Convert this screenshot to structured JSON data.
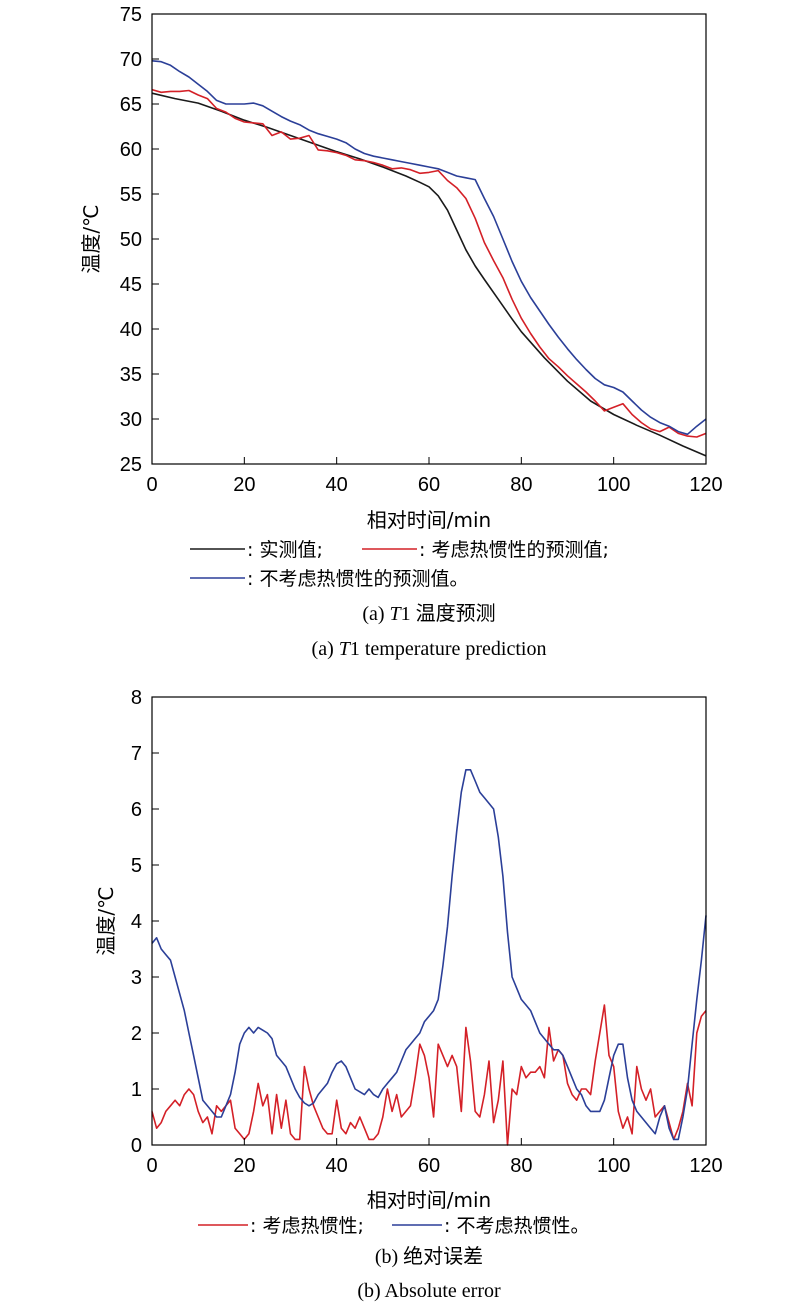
{
  "chart_data": [
    {
      "type": "line",
      "xlabel": "相对时间/min",
      "ylabel": "温度/℃",
      "xlim": [
        0,
        120
      ],
      "ylim": [
        25,
        75
      ],
      "x_ticks": [
        0,
        20,
        40,
        60,
        80,
        100,
        120
      ],
      "y_ticks": [
        25,
        30,
        35,
        40,
        45,
        50,
        55,
        60,
        65,
        70,
        75
      ],
      "grid": false,
      "legend_position": "below",
      "caption_cn_prefix": "(a) ",
      "caption_cn_italic": "T",
      "caption_cn_rest": "1 温度预测",
      "caption_en_prefix": "(a) ",
      "caption_en_italic": "T",
      "caption_en_rest": "1 temperature prediction",
      "legend": [
        {
          "label": ": 实测值;",
          "color": "#1a1a1a"
        },
        {
          "label": ": 考虑热惯性的预测值;",
          "color": "#d42027"
        },
        {
          "label": ": 不考虑热惯性的预测值。",
          "color": "#2b3f98"
        }
      ],
      "series": [
        {
          "color": "#1a1a1a",
          "x": [
            0,
            5,
            10,
            15,
            20,
            25,
            30,
            35,
            40,
            45,
            50,
            55,
            58,
            60,
            62,
            64,
            66,
            68,
            70,
            72,
            75,
            78,
            80,
            85,
            90,
            95,
            100,
            105,
            110,
            115,
            120
          ],
          "y": [
            66.2,
            65.6,
            65.1,
            64.2,
            63.2,
            62.4,
            61.5,
            60.6,
            59.7,
            58.9,
            58.0,
            57.0,
            56.3,
            55.8,
            54.8,
            53.2,
            51.0,
            48.8,
            47.0,
            45.5,
            43.3,
            41.1,
            39.7,
            36.8,
            34.2,
            32.0,
            30.5,
            29.3,
            28.2,
            27.0,
            25.9
          ]
        },
        {
          "color": "#d42027",
          "x": [
            0,
            2,
            4,
            6,
            8,
            10,
            12,
            14,
            16,
            18,
            20,
            22,
            24,
            26,
            28,
            30,
            32,
            34,
            36,
            38,
            40,
            42,
            44,
            46,
            48,
            50,
            52,
            54,
            56,
            58,
            60,
            62,
            64,
            66,
            68,
            70,
            72,
            74,
            76,
            78,
            80,
            82,
            84,
            86,
            88,
            90,
            92,
            94,
            96,
            98,
            100,
            102,
            104,
            106,
            108,
            110,
            112,
            114,
            116,
            118,
            120
          ],
          "y": [
            66.6,
            66.3,
            66.4,
            66.4,
            66.5,
            66.0,
            65.6,
            64.5,
            64.1,
            63.4,
            63.0,
            62.9,
            62.8,
            61.5,
            61.9,
            61.1,
            61.2,
            61.5,
            59.9,
            59.8,
            59.6,
            59.3,
            58.8,
            58.7,
            58.5,
            58.2,
            57.8,
            57.9,
            57.7,
            57.3,
            57.4,
            57.6,
            56.5,
            55.7,
            54.5,
            52.3,
            49.6,
            47.6,
            45.7,
            43.3,
            41.2,
            39.5,
            38.0,
            36.7,
            35.8,
            34.8,
            33.9,
            33.0,
            32.0,
            30.9,
            31.3,
            31.7,
            30.5,
            29.6,
            28.9,
            28.6,
            29.1,
            28.4,
            28.1,
            28.0,
            28.4
          ]
        },
        {
          "color": "#2b3f98",
          "x": [
            0,
            2,
            4,
            6,
            8,
            10,
            12,
            14,
            16,
            18,
            20,
            22,
            24,
            26,
            28,
            30,
            32,
            34,
            36,
            38,
            40,
            42,
            44,
            46,
            48,
            50,
            52,
            54,
            56,
            58,
            60,
            62,
            64,
            66,
            68,
            70,
            72,
            74,
            76,
            78,
            80,
            82,
            84,
            86,
            88,
            90,
            92,
            94,
            96,
            98,
            100,
            102,
            104,
            106,
            108,
            110,
            112,
            114,
            116,
            118,
            120
          ],
          "y": [
            69.8,
            69.7,
            69.3,
            68.6,
            68.0,
            67.2,
            66.4,
            65.4,
            65.0,
            65.0,
            65.0,
            65.1,
            64.8,
            64.2,
            63.6,
            63.1,
            62.7,
            62.1,
            61.7,
            61.4,
            61.1,
            60.7,
            60.0,
            59.5,
            59.2,
            59.0,
            58.8,
            58.6,
            58.4,
            58.2,
            58.0,
            57.8,
            57.4,
            57.0,
            56.8,
            56.6,
            54.5,
            52.5,
            50.0,
            47.5,
            45.3,
            43.5,
            42.0,
            40.5,
            39.1,
            37.8,
            36.6,
            35.5,
            34.5,
            33.8,
            33.5,
            33.0,
            32.0,
            31.0,
            30.2,
            29.6,
            29.2,
            28.6,
            28.3,
            29.2,
            30.0
          ]
        }
      ]
    },
    {
      "type": "line",
      "xlabel": "相对时间/min",
      "ylabel": "温度/℃",
      "xlim": [
        0,
        120
      ],
      "ylim": [
        0,
        8
      ],
      "x_ticks": [
        0,
        20,
        40,
        60,
        80,
        100,
        120
      ],
      "y_ticks": [
        0,
        1,
        2,
        3,
        4,
        5,
        6,
        7,
        8
      ],
      "grid": false,
      "legend_position": "below",
      "caption_cn": "(b) 绝对误差",
      "caption_en": "(b) Absolute error",
      "legend": [
        {
          "label": ": 考虑热惯性;",
          "color": "#d42027"
        },
        {
          "label": ": 不考虑热惯性。",
          "color": "#2b3f98"
        }
      ],
      "series": [
        {
          "color": "#d42027",
          "x": [
            0,
            1,
            2,
            3,
            4,
            5,
            6,
            7,
            8,
            9,
            10,
            11,
            12,
            13,
            14,
            15,
            16,
            17,
            18,
            19,
            20,
            21,
            22,
            23,
            24,
            25,
            26,
            27,
            28,
            29,
            30,
            31,
            32,
            33,
            34,
            35,
            36,
            37,
            38,
            39,
            40,
            41,
            42,
            43,
            44,
            45,
            46,
            47,
            48,
            49,
            50,
            51,
            52,
            53,
            54,
            55,
            56,
            57,
            58,
            59,
            60,
            61,
            62,
            63,
            64,
            65,
            66,
            67,
            68,
            69,
            70,
            71,
            72,
            73,
            74,
            75,
            76,
            77,
            78,
            79,
            80,
            81,
            82,
            83,
            84,
            85,
            86,
            87,
            88,
            89,
            90,
            91,
            92,
            93,
            94,
            95,
            96,
            97,
            98,
            99,
            100,
            101,
            102,
            103,
            104,
            105,
            106,
            107,
            108,
            109,
            110,
            111,
            112,
            113,
            114,
            115,
            116,
            117,
            118,
            119,
            120
          ],
          "y": [
            0.6,
            0.3,
            0.4,
            0.6,
            0.7,
            0.8,
            0.7,
            0.9,
            1.0,
            0.9,
            0.6,
            0.4,
            0.5,
            0.2,
            0.7,
            0.6,
            0.7,
            0.8,
            0.3,
            0.2,
            0.1,
            0.2,
            0.6,
            1.1,
            0.7,
            0.9,
            0.2,
            0.9,
            0.3,
            0.8,
            0.2,
            0.1,
            0.1,
            1.4,
            1.0,
            0.7,
            0.5,
            0.3,
            0.2,
            0.2,
            0.8,
            0.3,
            0.2,
            0.4,
            0.3,
            0.5,
            0.3,
            0.1,
            0.1,
            0.2,
            0.5,
            1.0,
            0.6,
            0.9,
            0.5,
            0.6,
            0.7,
            1.2,
            1.8,
            1.6,
            1.2,
            0.5,
            1.8,
            1.6,
            1.4,
            1.6,
            1.4,
            0.6,
            2.1,
            1.5,
            0.6,
            0.5,
            0.9,
            1.5,
            0.4,
            0.8,
            1.5,
            0.0,
            1.0,
            0.9,
            1.4,
            1.2,
            1.3,
            1.3,
            1.4,
            1.2,
            2.1,
            1.5,
            1.7,
            1.6,
            1.1,
            0.9,
            0.8,
            1.0,
            1.0,
            0.9,
            1.5,
            2.0,
            2.5,
            1.6,
            1.4,
            0.6,
            0.3,
            0.5,
            0.2,
            1.4,
            1.0,
            0.8,
            1.0,
            0.5,
            0.6,
            0.7,
            0.4,
            0.1,
            0.3,
            0.6,
            1.1,
            0.7,
            2.0,
            2.3,
            2.4
          ]
        },
        {
          "color": "#2b3f98",
          "x": [
            0,
            1,
            2,
            3,
            4,
            5,
            6,
            7,
            8,
            9,
            10,
            11,
            12,
            13,
            14,
            15,
            16,
            17,
            18,
            19,
            20,
            21,
            22,
            23,
            24,
            25,
            26,
            27,
            28,
            29,
            30,
            31,
            32,
            33,
            34,
            35,
            36,
            37,
            38,
            39,
            40,
            41,
            42,
            43,
            44,
            45,
            46,
            47,
            48,
            49,
            50,
            51,
            52,
            53,
            54,
            55,
            56,
            57,
            58,
            59,
            60,
            61,
            62,
            63,
            64,
            65,
            66,
            67,
            68,
            69,
            70,
            71,
            72,
            73,
            74,
            75,
            76,
            77,
            78,
            79,
            80,
            81,
            82,
            83,
            84,
            85,
            86,
            87,
            88,
            89,
            90,
            91,
            92,
            93,
            94,
            95,
            96,
            97,
            98,
            99,
            100,
            101,
            102,
            103,
            104,
            105,
            106,
            107,
            108,
            109,
            110,
            111,
            112,
            113,
            114,
            115,
            116,
            117,
            118,
            119,
            120
          ],
          "y": [
            3.6,
            3.7,
            3.5,
            3.4,
            3.3,
            3.0,
            2.7,
            2.4,
            2.0,
            1.6,
            1.2,
            0.8,
            0.7,
            0.6,
            0.5,
            0.5,
            0.7,
            0.9,
            1.3,
            1.8,
            2.0,
            2.1,
            2.0,
            2.1,
            2.05,
            2.0,
            1.9,
            1.6,
            1.5,
            1.4,
            1.2,
            1.0,
            0.85,
            0.75,
            0.7,
            0.75,
            0.9,
            1.0,
            1.1,
            1.3,
            1.45,
            1.5,
            1.4,
            1.2,
            1.0,
            0.95,
            0.9,
            1.0,
            0.9,
            0.85,
            1.0,
            1.1,
            1.2,
            1.3,
            1.5,
            1.7,
            1.8,
            1.9,
            2.0,
            2.2,
            2.3,
            2.4,
            2.6,
            3.2,
            3.9,
            4.8,
            5.6,
            6.3,
            6.7,
            6.7,
            6.5,
            6.3,
            6.2,
            6.1,
            6.0,
            5.5,
            4.8,
            3.8,
            3.0,
            2.8,
            2.6,
            2.5,
            2.4,
            2.2,
            2.0,
            1.9,
            1.8,
            1.7,
            1.7,
            1.6,
            1.4,
            1.2,
            1.0,
            0.9,
            0.7,
            0.6,
            0.6,
            0.6,
            0.8,
            1.2,
            1.6,
            1.8,
            1.8,
            1.2,
            0.8,
            0.6,
            0.5,
            0.4,
            0.3,
            0.2,
            0.5,
            0.7,
            0.3,
            0.1,
            0.1,
            0.5,
            1.0,
            1.8,
            2.6,
            3.3,
            4.1
          ]
        }
      ]
    }
  ]
}
